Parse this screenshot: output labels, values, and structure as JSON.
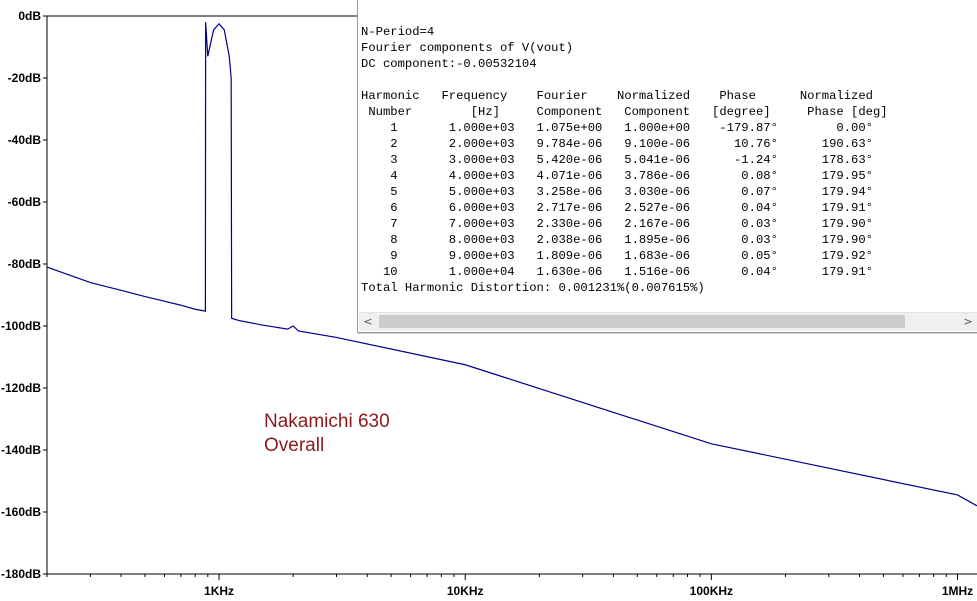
{
  "chart_data": {
    "type": "line",
    "x_scale": "log",
    "x_range_hz": [
      200,
      1200000
    ],
    "ylim": [
      -180,
      0
    ],
    "y_ticks": [
      "0dB",
      "-20dB",
      "-40dB",
      "-60dB",
      "-80dB",
      "-100dB",
      "-120dB",
      "-140dB",
      "-160dB",
      "-180dB"
    ],
    "y_tick_values": [
      0,
      -20,
      -40,
      -60,
      -80,
      -100,
      -120,
      -140,
      -160,
      -180
    ],
    "x_ticks": [
      "1KHz",
      "10KHz",
      "100KHz",
      "1MHz"
    ],
    "x_tick_values": [
      1000,
      10000,
      100000,
      1000000
    ],
    "grid": false,
    "line_color": "#00008b",
    "series": [
      {
        "x": [
          200,
          300,
          400,
          500,
          600,
          700,
          800,
          880,
          882,
          900,
          950,
          1000,
          1050,
          1100,
          1120,
          1125,
          1200,
          1500,
          1900,
          2000,
          2100,
          3000,
          10000,
          100000,
          1000000,
          1200000
        ],
        "y": [
          -81,
          -86,
          -88.5,
          -90.5,
          -92,
          -93.3,
          -94.6,
          -95.2,
          -2,
          -13,
          -4.5,
          -2.5,
          -4.5,
          -13,
          -20,
          -97.5,
          -98.2,
          -99.7,
          -101,
          -100,
          -101.6,
          -103.7,
          -112.5,
          -138,
          -154.5,
          -158
        ]
      }
    ],
    "annotation": [
      "Nakamichi 630",
      "Overall"
    ]
  },
  "fourier_window": {
    "header": [
      "N-Period=4",
      "Fourier components of V(vout)",
      "DC component:-0.00532104"
    ],
    "col_header_1": "Harmonic   Frequency    Fourier    Normalized    Phase      Normalized",
    "col_header_2": " Number        [Hz]     Component   Component   [degree]     Phase [deg]",
    "rows": [
      "    1       1.000e+03   1.075e+00   1.000e+00    -179.87°        0.00°",
      "    2       2.000e+03   9.784e-06   9.100e-06      10.76°      190.63°",
      "    3       3.000e+03   5.420e-06   5.041e-06      -1.24°      178.63°",
      "    4       4.000e+03   4.071e-06   3.786e-06       0.08°      179.95°",
      "    5       5.000e+03   3.258e-06   3.030e-06       0.07°      179.94°",
      "    6       6.000e+03   2.717e-06   2.527e-06       0.04°      179.91°",
      "    7       7.000e+03   2.330e-06   2.167e-06       0.03°      179.90°",
      "    8       8.000e+03   2.038e-06   1.895e-06       0.03°      179.90°",
      "    9       9.000e+03   1.809e-06   1.683e-06       0.05°      179.92°",
      "   10       1.000e+04   1.630e-06   1.516e-06       0.04°      179.91°"
    ],
    "footer": "Total Harmonic Distortion: 0.001231%(0.007615%)",
    "scroll_left_glyph": "<",
    "scroll_right_glyph": ">"
  }
}
